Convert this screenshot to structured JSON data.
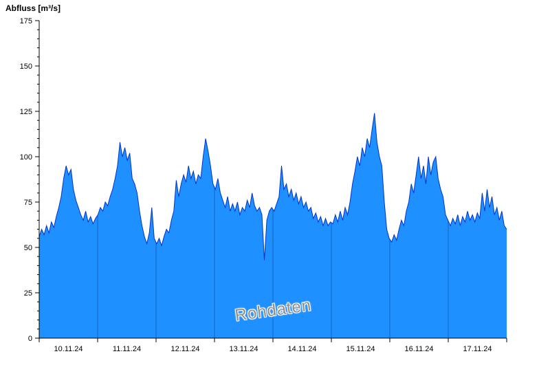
{
  "header": {
    "title": "Abfluss [m³/s]"
  },
  "watermark": {
    "text": "Rohdaten"
  },
  "chart_data": {
    "type": "area",
    "title": "Abfluss [m³/s]",
    "ylabel": "Abfluss [m³/s]",
    "watermark": "Rohdaten",
    "x_start": "10.11.24 00:00",
    "x_end": "18.11.24 00:00",
    "sample_interval_hours": 1,
    "x_tick_labels": [
      "10.11.24",
      "11.11.24",
      "12.11.24",
      "13.11.24",
      "14.11.24",
      "15.11.24",
      "16.11.24",
      "17.11.24"
    ],
    "y_ticks": [
      0,
      25,
      50,
      75,
      100,
      125,
      150,
      175
    ],
    "ylim": [
      0,
      175
    ],
    "grid": "none",
    "legend": "none",
    "series": [
      {
        "name": "Abfluss Rohdaten",
        "values": [
          56,
          60,
          57,
          62,
          58,
          64,
          61,
          67,
          72,
          78,
          88,
          95,
          90,
          93,
          82,
          76,
          72,
          68,
          65,
          70,
          64,
          67,
          63,
          66,
          68,
          72,
          70,
          75,
          73,
          78,
          82,
          88,
          95,
          108,
          100,
          105,
          98,
          102,
          88,
          85,
          80,
          70,
          62,
          56,
          52,
          58,
          72,
          55,
          52,
          55,
          51,
          56,
          60,
          58,
          65,
          70,
          87,
          78,
          85,
          90,
          86,
          95,
          88,
          92,
          85,
          90,
          88,
          100,
          110,
          103,
          95,
          85,
          82,
          88,
          80,
          76,
          72,
          78,
          70,
          74,
          70,
          75,
          68,
          72,
          70,
          76,
          72,
          80,
          73,
          70,
          72,
          68,
          43,
          65,
          70,
          72,
          70,
          74,
          78,
          95,
          82,
          85,
          78,
          82,
          76,
          80,
          74,
          78,
          72,
          75,
          70,
          72,
          66,
          69,
          64,
          67,
          62,
          66,
          62,
          64,
          63,
          68,
          64,
          70,
          65,
          72,
          68,
          75,
          85,
          92,
          100,
          95,
          105,
          100,
          110,
          105,
          115,
          124,
          108,
          100,
          95,
          75,
          60,
          55,
          53,
          57,
          54,
          60,
          65,
          62,
          70,
          75,
          85,
          80,
          90,
          100,
          88,
          95,
          85,
          100,
          90,
          97,
          100,
          88,
          82,
          78,
          68,
          65,
          62,
          66,
          63,
          68,
          62,
          67,
          64,
          70,
          65,
          68,
          64,
          69,
          66,
          80,
          70,
          82,
          72,
          78,
          68,
          72,
          65,
          70,
          62,
          60
        ]
      }
    ],
    "colors": {
      "fill": "#1e90ff",
      "line": "#0033cc",
      "day_divider": "#1565c0",
      "axis": "#000000",
      "tick_label": "#000000",
      "watermark": "#8f8f8f"
    }
  }
}
